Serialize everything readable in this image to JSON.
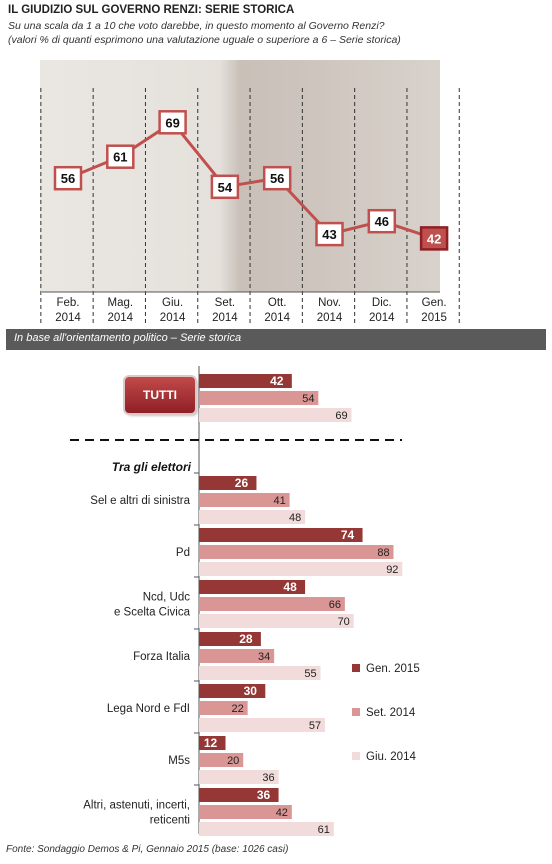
{
  "header": {
    "title": "IL GIUDIZIO SUL GOVERNO RENZI: SERIE STORICA",
    "subtitle_line1": "Su una scala da 1 a 10 che voto darebbe, in questo momento al Governo Renzi?",
    "subtitle_line2": "(valori % di quanti esprimono una valutazione uguale o superiore a 6 – Serie storica)"
  },
  "section_bar": "In base all'orientamento politico – Serie storica",
  "tutti_label": "TUTTI",
  "group_heading": "Tra gli elettori",
  "source": "Fonte: Sondaggio Demos & Pi, Gennaio 2015 (base: 1026 casi)",
  "colors": {
    "line": "#c0504d",
    "gen": "#953735",
    "set": "#d99694",
    "giu": "#f2dcdb",
    "label_box_border": "#c0504d"
  },
  "chart_data": [
    {
      "type": "line",
      "title": "IL GIUDIZIO SUL GOVERNO RENZI: SERIE STORICA",
      "categories": [
        "Feb.\n2014",
        "Mag.\n2014",
        "Giu.\n2014",
        "Set.\n2014",
        "Ott.\n2014",
        "Nov.\n2014",
        "Dic.\n2014",
        "Gen.\n2015"
      ],
      "values": [
        56,
        61,
        69,
        54,
        56,
        43,
        46,
        42
      ],
      "ylim": [
        30,
        80
      ]
    },
    {
      "type": "bar",
      "orientation": "horizontal",
      "categories": [
        "TUTTI",
        "Sel e altri di sinistra",
        "Pd",
        "Ncd, Udc\ne Scelta Civica",
        "Forza Italia",
        "Lega Nord e FdI",
        "M5s",
        "Altri, astenuti, incerti,\nreticenti"
      ],
      "series": [
        {
          "name": "Gen. 2015",
          "values": [
            42,
            26,
            74,
            48,
            28,
            30,
            12,
            36
          ]
        },
        {
          "name": "Set. 2014",
          "values": [
            54,
            41,
            88,
            66,
            34,
            22,
            20,
            42
          ]
        },
        {
          "name": "Giu. 2014",
          "values": [
            69,
            48,
            92,
            70,
            55,
            57,
            36,
            61
          ]
        }
      ],
      "legend_position": "right"
    }
  ]
}
